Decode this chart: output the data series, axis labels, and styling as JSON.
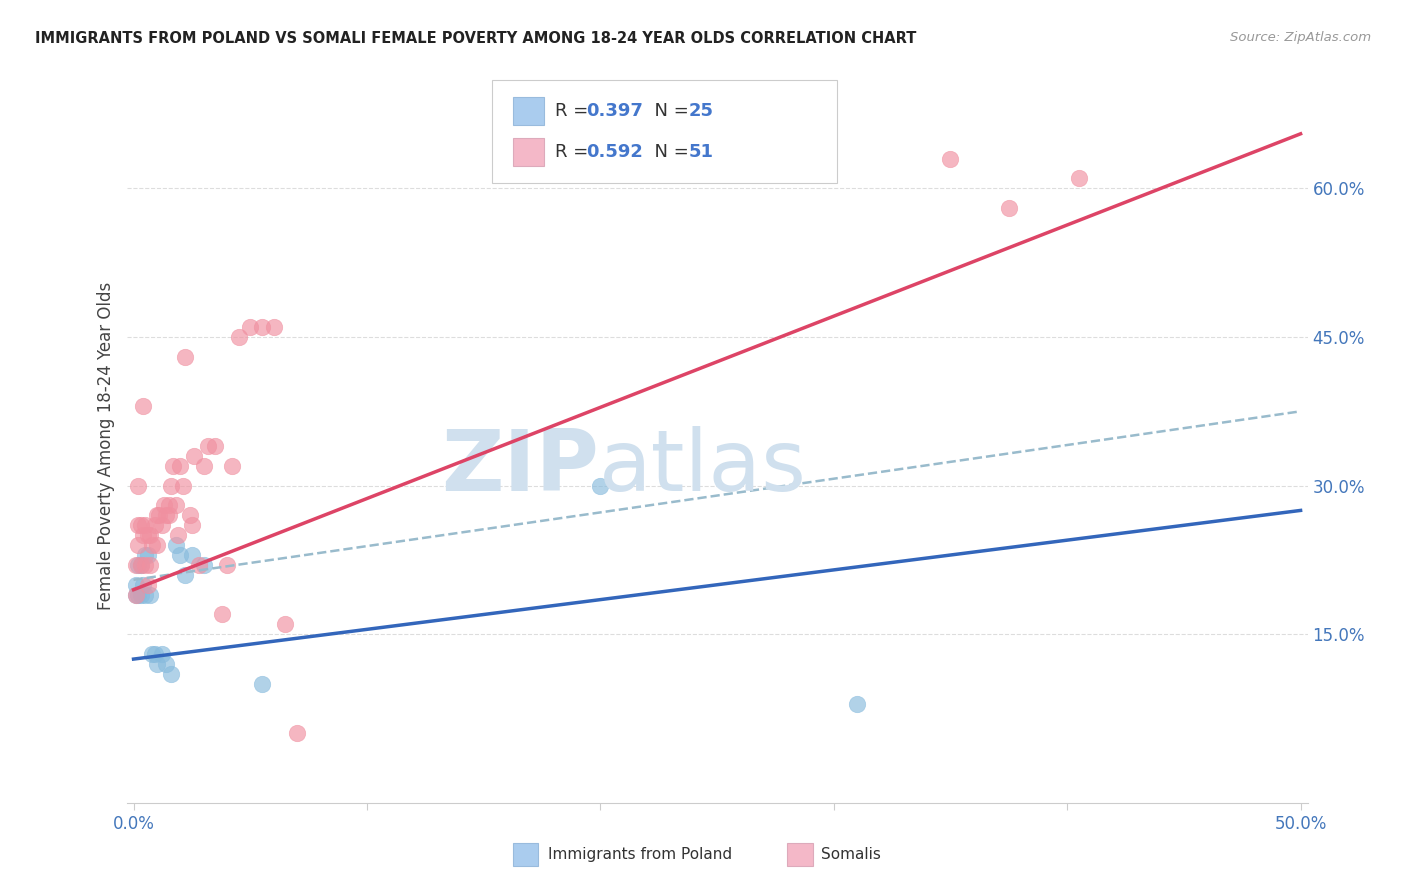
{
  "title": "IMMIGRANTS FROM POLAND VS SOMALI FEMALE POVERTY AMONG 18-24 YEAR OLDS CORRELATION CHART",
  "source": "Source: ZipAtlas.com",
  "ylabel": "Female Poverty Among 18-24 Year Olds",
  "xlim": [
    -0.003,
    0.503
  ],
  "ylim": [
    -0.02,
    0.7
  ],
  "xtick_vals": [
    0.0,
    0.1,
    0.2,
    0.3,
    0.4,
    0.5
  ],
  "xtick_labels": [
    "0.0%",
    "",
    "",
    "",
    "",
    "50.0%"
  ],
  "ytick_vals": [
    0.15,
    0.3,
    0.45,
    0.6
  ],
  "ytick_labels": [
    "15.0%",
    "30.0%",
    "45.0%",
    "60.0%"
  ],
  "poland_color": "#88bbdd",
  "somali_color": "#f090a0",
  "poland_line_color": "#3366bb",
  "somali_line_color": "#dd4466",
  "poland_dashed_color": "#99bbcc",
  "legend_poland_fill": "#aaccee",
  "legend_somali_fill": "#f4b8c8",
  "watermark_color": "#d0e0ee",
  "bg_color": "#ffffff",
  "grid_color": "#dddddd",
  "title_color": "#222222",
  "axis_label_color": "#4477bb",
  "poland_R": 0.397,
  "poland_N": 25,
  "somali_R": 0.592,
  "somali_N": 51,
  "poland_line_x0": 0.0,
  "poland_line_y0": 0.125,
  "poland_line_x1": 0.5,
  "poland_line_y1": 0.275,
  "somali_line_x0": 0.0,
  "somali_line_y0": 0.195,
  "somali_line_x1": 0.5,
  "somali_line_y1": 0.655,
  "dashed_line_x0": 0.0,
  "dashed_line_y0": 0.205,
  "dashed_line_x1": 0.5,
  "dashed_line_y1": 0.375,
  "poland_x": [
    0.001,
    0.001,
    0.002,
    0.002,
    0.003,
    0.003,
    0.004,
    0.005,
    0.005,
    0.006,
    0.007,
    0.008,
    0.009,
    0.01,
    0.012,
    0.014,
    0.016,
    0.018,
    0.02,
    0.022,
    0.025,
    0.03,
    0.055,
    0.2,
    0.31
  ],
  "poland_y": [
    0.2,
    0.19,
    0.22,
    0.19,
    0.22,
    0.19,
    0.2,
    0.23,
    0.19,
    0.23,
    0.19,
    0.13,
    0.13,
    0.12,
    0.13,
    0.12,
    0.11,
    0.24,
    0.23,
    0.21,
    0.23,
    0.22,
    0.1,
    0.3,
    0.08
  ],
  "somali_x": [
    0.001,
    0.001,
    0.002,
    0.002,
    0.002,
    0.003,
    0.003,
    0.004,
    0.004,
    0.005,
    0.005,
    0.006,
    0.006,
    0.007,
    0.007,
    0.008,
    0.009,
    0.01,
    0.01,
    0.011,
    0.012,
    0.013,
    0.014,
    0.015,
    0.015,
    0.016,
    0.017,
    0.018,
    0.019,
    0.02,
    0.021,
    0.022,
    0.024,
    0.025,
    0.026,
    0.028,
    0.03,
    0.032,
    0.035,
    0.038,
    0.04,
    0.042,
    0.045,
    0.05,
    0.055,
    0.06,
    0.065,
    0.07,
    0.35,
    0.375,
    0.405
  ],
  "somali_y": [
    0.22,
    0.19,
    0.26,
    0.3,
    0.24,
    0.26,
    0.22,
    0.38,
    0.25,
    0.26,
    0.22,
    0.25,
    0.2,
    0.25,
    0.22,
    0.24,
    0.26,
    0.27,
    0.24,
    0.27,
    0.26,
    0.28,
    0.27,
    0.28,
    0.27,
    0.3,
    0.32,
    0.28,
    0.25,
    0.32,
    0.3,
    0.43,
    0.27,
    0.26,
    0.33,
    0.22,
    0.32,
    0.34,
    0.34,
    0.17,
    0.22,
    0.32,
    0.45,
    0.46,
    0.46,
    0.46,
    0.16,
    0.05,
    0.63,
    0.58,
    0.61
  ]
}
